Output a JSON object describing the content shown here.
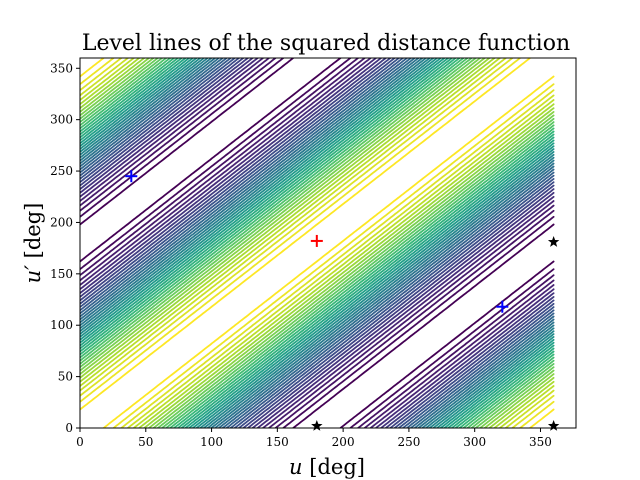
{
  "chart_data": {
    "type": "contour",
    "title": "Level lines of the squared distance function",
    "xlabel": "u [deg]",
    "ylabel": "u′ [deg]",
    "xlabel_parts": {
      "symbol": "u",
      "unit": " [deg]"
    },
    "ylabel_parts": {
      "symbol": "u′",
      "unit": " [deg]"
    },
    "xlim": [
      0,
      377
    ],
    "ylim": [
      0,
      360
    ],
    "xticks": [
      0,
      50,
      100,
      150,
      200,
      250,
      300,
      350
    ],
    "yticks": [
      0,
      50,
      100,
      150,
      200,
      250,
      300,
      350
    ],
    "grid": false,
    "colormap": "viridis",
    "level_count": 40,
    "maximum": {
      "u": 180,
      "u_prime": 182,
      "marker": "+",
      "color": "#ff0000"
    },
    "saddle_points": [
      {
        "u": 39,
        "u_prime": 245,
        "marker": "+",
        "color": "#0000ff"
      },
      {
        "u": 321,
        "u_prime": 118,
        "marker": "+",
        "color": "#0000ff"
      }
    ],
    "boundary_points": [
      {
        "u": 180,
        "u_prime": 2,
        "marker": "star",
        "color": "#000000"
      },
      {
        "u": 360,
        "u_prime": 2,
        "marker": "star",
        "color": "#000000"
      },
      {
        "u": 360,
        "u_prime": 181,
        "marker": "star",
        "color": "#000000"
      }
    ]
  }
}
